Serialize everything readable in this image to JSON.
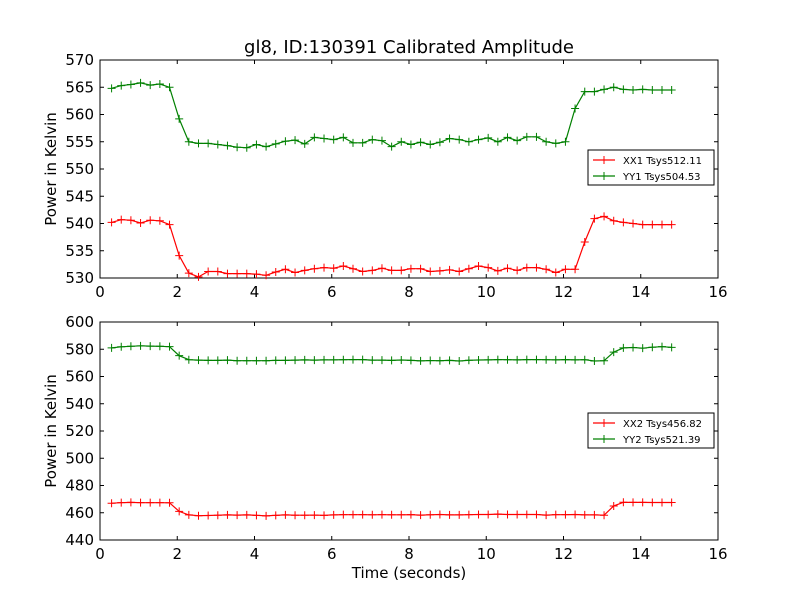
{
  "title": "gl8, ID:130391 Calibrated Amplitude",
  "colors": {
    "series_a": "#ff0000",
    "series_b": "#008000",
    "axes": "#000000"
  },
  "chart_data": [
    {
      "type": "line",
      "title": "gl8, ID:130391 Calibrated Amplitude",
      "xlabel": "",
      "ylabel": "Power in Kelvin",
      "xlim": [
        0,
        16
      ],
      "ylim": [
        530,
        570
      ],
      "xticks": [
        "0",
        "2",
        "4",
        "6",
        "8",
        "10",
        "12",
        "14",
        "16"
      ],
      "yticks": [
        "530",
        "535",
        "540",
        "545",
        "550",
        "555",
        "560",
        "565",
        "570"
      ],
      "legend_position": "right",
      "grid": false,
      "x": [
        0.3,
        0.55,
        0.8,
        1.05,
        1.3,
        1.55,
        1.8,
        2.05,
        2.3,
        2.55,
        2.8,
        3.05,
        3.3,
        3.55,
        3.8,
        4.05,
        4.3,
        4.55,
        4.8,
        5.05,
        5.3,
        5.55,
        5.8,
        6.05,
        6.3,
        6.55,
        6.8,
        7.05,
        7.3,
        7.55,
        7.8,
        8.05,
        8.3,
        8.55,
        8.8,
        9.05,
        9.3,
        9.55,
        9.8,
        10.05,
        10.3,
        10.55,
        10.8,
        11.05,
        11.3,
        11.55,
        11.8,
        12.05,
        12.3,
        12.55,
        12.8,
        13.05,
        13.3,
        13.55,
        13.8,
        14.05,
        14.3,
        14.55,
        14.8
      ],
      "series": [
        {
          "name": "XX1 Tsys512.11",
          "color": "#ff0000",
          "values": [
            540.2,
            540.7,
            540.6,
            540.1,
            540.6,
            540.5,
            539.8,
            534.1,
            530.9,
            530.2,
            531.2,
            531.2,
            530.8,
            530.8,
            530.8,
            530.7,
            530.5,
            531.1,
            531.6,
            531.0,
            531.4,
            531.7,
            531.9,
            531.8,
            532.2,
            531.7,
            531.2,
            531.4,
            531.8,
            531.4,
            531.4,
            531.7,
            531.7,
            531.2,
            531.3,
            531.5,
            531.2,
            531.7,
            532.2,
            531.9,
            531.3,
            531.8,
            531.4,
            531.9,
            531.9,
            531.6,
            531.0,
            531.6,
            531.6,
            536.6,
            540.9,
            541.3,
            540.5,
            540.2,
            540.0,
            539.8,
            539.8,
            539.8,
            539.8
          ]
        },
        {
          "name": "YY1 Tsys504.53",
          "color": "#008000",
          "values": [
            564.8,
            565.3,
            565.5,
            565.8,
            565.4,
            565.6,
            565.0,
            559.2,
            555.0,
            554.7,
            554.7,
            554.5,
            554.3,
            554.0,
            553.9,
            554.5,
            554.1,
            554.6,
            555.1,
            555.3,
            554.6,
            555.8,
            555.6,
            555.4,
            555.8,
            554.8,
            554.8,
            555.4,
            555.2,
            554.1,
            555.0,
            554.5,
            554.9,
            554.5,
            554.9,
            555.6,
            555.4,
            555.0,
            555.4,
            555.7,
            555.0,
            555.8,
            555.2,
            555.9,
            555.9,
            555.0,
            554.7,
            555.0,
            561.1,
            564.2,
            564.2,
            564.6,
            565.0,
            564.6,
            564.5,
            564.6,
            564.5,
            564.5,
            564.5
          ]
        }
      ]
    },
    {
      "type": "line",
      "title": "",
      "xlabel": "Time (seconds)",
      "ylabel": "Power in Kelvin",
      "xlim": [
        0,
        16
      ],
      "ylim": [
        440,
        600
      ],
      "xticks": [
        "0",
        "2",
        "4",
        "6",
        "8",
        "10",
        "12",
        "14",
        "16"
      ],
      "yticks": [
        "440",
        "460",
        "480",
        "500",
        "520",
        "540",
        "560",
        "580",
        "600"
      ],
      "legend_position": "right",
      "grid": false,
      "x": [
        0.3,
        0.55,
        0.8,
        1.05,
        1.3,
        1.55,
        1.8,
        2.05,
        2.3,
        2.55,
        2.8,
        3.05,
        3.3,
        3.55,
        3.8,
        4.05,
        4.3,
        4.55,
        4.8,
        5.05,
        5.3,
        5.55,
        5.8,
        6.05,
        6.3,
        6.55,
        6.8,
        7.05,
        7.3,
        7.55,
        7.8,
        8.05,
        8.3,
        8.55,
        8.8,
        9.05,
        9.3,
        9.55,
        9.8,
        10.05,
        10.3,
        10.55,
        10.8,
        11.05,
        11.3,
        11.55,
        11.8,
        12.05,
        12.3,
        12.55,
        12.8,
        13.05,
        13.3,
        13.55,
        13.8,
        14.05,
        14.3,
        14.55,
        14.8
      ],
      "series": [
        {
          "name": "XX2 Tsys456.82",
          "color": "#ff0000",
          "values": [
            467.0,
            467.4,
            467.6,
            467.4,
            467.4,
            467.4,
            467.3,
            461.0,
            458.4,
            457.8,
            458.0,
            458.2,
            458.4,
            458.3,
            458.4,
            458.1,
            457.7,
            458.1,
            458.4,
            458.2,
            458.2,
            458.3,
            458.1,
            458.4,
            458.6,
            458.6,
            458.6,
            458.5,
            458.6,
            458.5,
            458.5,
            458.6,
            458.3,
            458.5,
            458.7,
            458.4,
            458.4,
            458.6,
            458.7,
            458.7,
            459.0,
            458.7,
            458.7,
            458.7,
            458.7,
            458.3,
            458.6,
            458.6,
            458.7,
            458.4,
            458.4,
            458.2,
            465.0,
            467.7,
            467.6,
            467.6,
            467.5,
            467.5,
            467.5
          ]
        },
        {
          "name": "YY2 Tsys521.39",
          "color": "#008000",
          "values": [
            581.0,
            581.8,
            582.2,
            582.5,
            582.3,
            582.2,
            581.9,
            575.3,
            572.3,
            572.0,
            571.8,
            571.8,
            572.0,
            571.6,
            571.6,
            571.6,
            571.6,
            571.8,
            571.8,
            572.0,
            572.2,
            572.0,
            572.2,
            572.2,
            572.3,
            572.4,
            572.4,
            572.0,
            572.0,
            571.8,
            572.1,
            571.8,
            571.5,
            571.7,
            571.6,
            571.8,
            571.4,
            571.9,
            572.1,
            572.2,
            572.4,
            572.3,
            572.2,
            572.4,
            572.4,
            572.3,
            572.2,
            572.4,
            572.2,
            572.3,
            571.4,
            571.6,
            577.9,
            581.0,
            581.3,
            580.8,
            581.5,
            581.9,
            581.4
          ]
        }
      ]
    }
  ]
}
